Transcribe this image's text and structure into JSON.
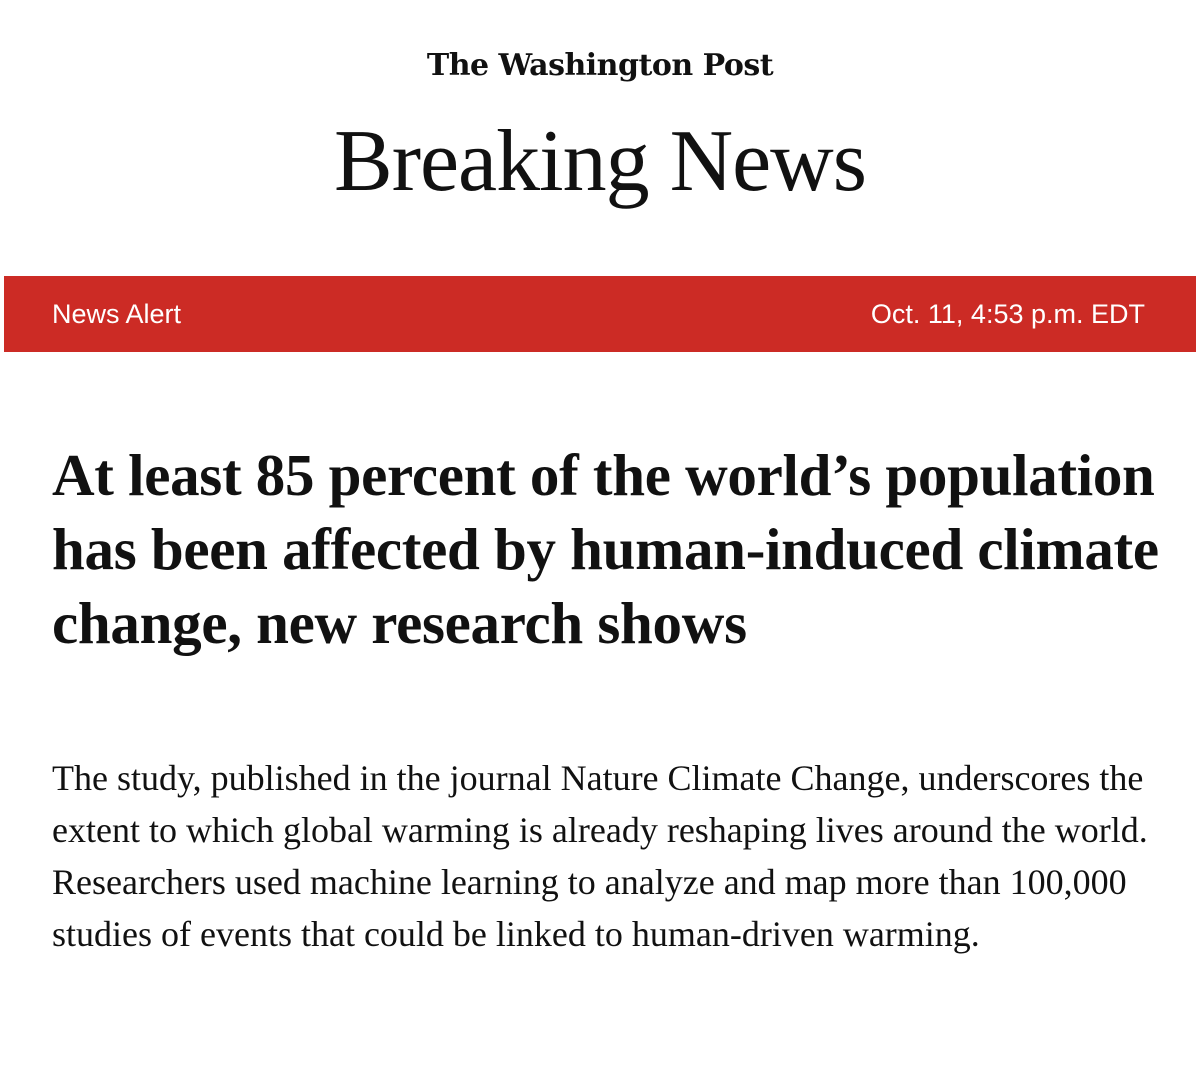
{
  "header": {
    "masthead": "The Washington Post",
    "title": "Breaking News"
  },
  "alert_bar": {
    "label": "News Alert",
    "timestamp": "Oct. 11, 4:53 p.m. EDT",
    "color": "#cc2b25"
  },
  "article": {
    "headline": "At least 85 percent of the world’s population has been affected by human-induced climate change, new research shows",
    "summary": "The study, published in the journal Nature Climate Change, underscores the extent to which global warming is already reshaping lives around the world. Researchers used machine learning to analyze and map more than 100,000 studies of events that could be linked to human-driven warming."
  }
}
